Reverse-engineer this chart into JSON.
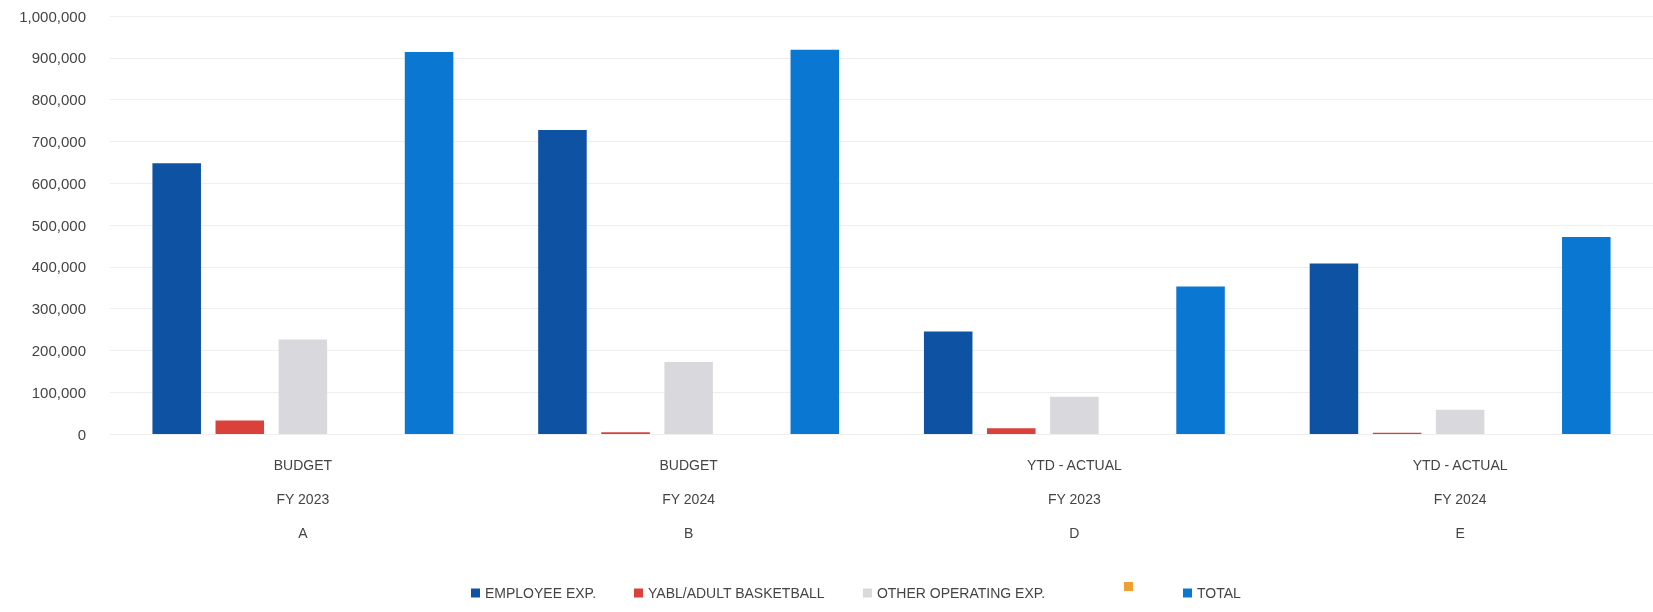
{
  "chart_data": {
    "type": "bar",
    "categories": [
      "BUDGET\nFY 2023\nA",
      "BUDGET\nFY 2024\nB",
      "YTD - ACTUAL\nFY 2023\nD",
      "YTD - ACTUAL\nFY 2024\nE"
    ],
    "series": [
      {
        "name": "EMPLOYEE EXP.",
        "color": "#0d52a3",
        "values": [
          648000,
          727000,
          245000,
          408000
        ]
      },
      {
        "name": "YABL/ADULT BASKETBALL",
        "color": "#d9413a",
        "values": [
          32000,
          4000,
          14000,
          3000
        ]
      },
      {
        "name": "OTHER OPERATING EXP.",
        "color": "#d9d9dd",
        "values": [
          226000,
          172000,
          89000,
          58000
        ]
      },
      {
        "color": "#f0a030",
        "values": [
          null,
          null,
          null,
          null
        ]
      },
      {
        "name": "TOTAL",
        "color": "#0a78d2",
        "values": [
          914000,
          919000,
          353000,
          471000
        ]
      }
    ],
    "ylim": [
      0,
      1000000
    ],
    "yticks": [
      0,
      {
        "value": 100000,
        "label": "100,000"
      },
      {
        "value": 200000,
        "label": "200,000"
      },
      {
        "value": 300000,
        "label": "300,000"
      },
      {
        "value": 400000,
        "label": "400,000"
      },
      {
        "value": 500000,
        "label": "500,000"
      },
      {
        "value": 600000,
        "label": "600,000"
      },
      {
        "value": 700000,
        "label": "700,000"
      },
      {
        "value": 800000,
        "label": "800,000"
      },
      {
        "value": 900000,
        "label": "900,000"
      },
      {
        "value": 1000000,
        "label": "1,000,000"
      }
    ],
    "grid": "y",
    "legend": "bottom"
  }
}
